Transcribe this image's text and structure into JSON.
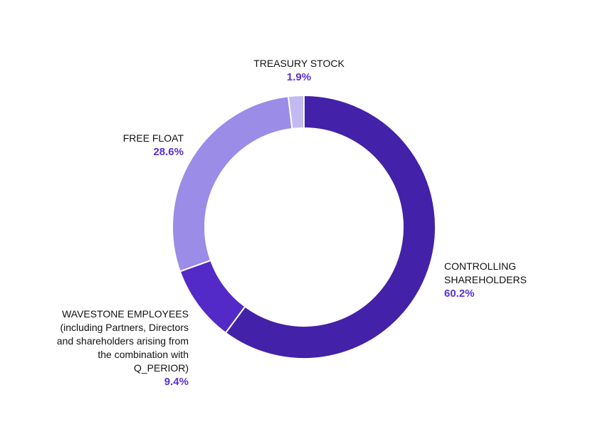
{
  "chart_data": {
    "type": "pie",
    "variant": "donut",
    "title": "",
    "slices": [
      {
        "label": "CONTROLLING\nSHAREHOLDERS",
        "value": 60.2,
        "value_label": "60.2%",
        "color": "#4321A8"
      },
      {
        "label": "WAVESTONE EMPLOYEES\n(including Partners, Directors\nand shareholders arising from\nthe combination with\nQ_PERIOR)",
        "value": 9.4,
        "value_label": "9.4%",
        "color": "#532AC8"
      },
      {
        "label": "FREE FLOAT",
        "value": 28.6,
        "value_label": "28.6%",
        "color": "#9B8CE8"
      },
      {
        "label": "TREASURY STOCK",
        "value": 1.9,
        "value_label": "1.9%",
        "color": "#C4BAF2"
      }
    ],
    "start_angle": "top",
    "direction": "clockwise",
    "legend": "none",
    "label_value_color": "#5B2FD6"
  }
}
